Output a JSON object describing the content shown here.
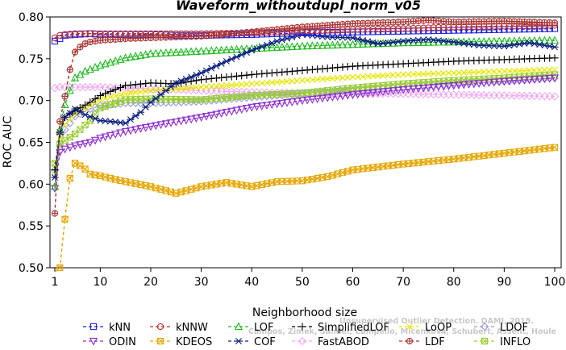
{
  "chart_data": {
    "type": "line",
    "title": "Waveform_withoutdupl_norm_v05",
    "xlabel": "Neighborhood size",
    "ylabel": "ROC AUC",
    "xlim": [
      1,
      100
    ],
    "ylim": [
      0.5,
      0.8
    ],
    "xticks": [
      1,
      10,
      20,
      30,
      40,
      50,
      60,
      70,
      80,
      90,
      100
    ],
    "yticks": [
      0.5,
      0.55,
      0.6,
      0.65,
      0.7,
      0.75,
      0.8
    ],
    "grid": false,
    "legend_position": "bottom",
    "watermark": [
      "Campos, Zimek, Sander, Campello, Micenkova, Schubert, Assent, Houle",
      "Unsupervised Outlier Detection. DAMI, 2015."
    ],
    "series": [
      {
        "name": "kNN",
        "color": "#1f1fe6",
        "marker": "square",
        "x": [
          1,
          2,
          3,
          5,
          8,
          10,
          15,
          20,
          25,
          30,
          40,
          50,
          60,
          70,
          80,
          90,
          100
        ],
        "y": [
          0.771,
          0.774,
          0.778,
          0.779,
          0.78,
          0.779,
          0.779,
          0.779,
          0.778,
          0.778,
          0.779,
          0.781,
          0.782,
          0.783,
          0.784,
          0.785,
          0.786
        ]
      },
      {
        "name": "kNNW",
        "color": "#c03030",
        "marker": "circle",
        "x": [
          1,
          2,
          3,
          5,
          8,
          10,
          15,
          20,
          30,
          40,
          50,
          60,
          70,
          80,
          90,
          100
        ],
        "y": [
          0.775,
          0.778,
          0.779,
          0.78,
          0.78,
          0.78,
          0.78,
          0.78,
          0.78,
          0.781,
          0.783,
          0.785,
          0.786,
          0.788,
          0.789,
          0.79
        ]
      },
      {
        "name": "LOF",
        "color": "#22bb22",
        "marker": "triangle-up",
        "x": [
          1,
          2,
          3,
          4,
          5,
          7,
          10,
          15,
          20,
          30,
          40,
          50,
          60,
          70,
          80,
          90,
          100
        ],
        "y": [
          0.597,
          0.665,
          0.695,
          0.712,
          0.727,
          0.735,
          0.742,
          0.751,
          0.756,
          0.759,
          0.762,
          0.765,
          0.767,
          0.769,
          0.77,
          0.771,
          0.772
        ]
      },
      {
        "name": "SimplifiedLOF",
        "color": "#000000",
        "marker": "plus",
        "x": [
          1,
          2,
          3,
          5,
          8,
          10,
          15,
          20,
          25,
          30,
          40,
          50,
          60,
          70,
          80,
          90,
          100
        ],
        "y": [
          0.617,
          0.66,
          0.68,
          0.688,
          0.698,
          0.706,
          0.718,
          0.721,
          0.72,
          0.725,
          0.731,
          0.736,
          0.741,
          0.744,
          0.747,
          0.749,
          0.751
        ]
      },
      {
        "name": "LoOP",
        "color": "#e6e600",
        "marker": "x",
        "x": [
          1,
          2,
          3,
          5,
          8,
          10,
          15,
          20,
          30,
          40,
          50,
          60,
          70,
          80,
          90,
          100
        ],
        "y": [
          0.615,
          0.655,
          0.672,
          0.684,
          0.694,
          0.701,
          0.708,
          0.712,
          0.716,
          0.72,
          0.724,
          0.728,
          0.731,
          0.733,
          0.735,
          0.737
        ]
      },
      {
        "name": "LDOF",
        "color": "#9a9ae0",
        "marker": "diamond",
        "x": [
          1,
          2,
          3,
          5,
          8,
          10,
          15,
          20,
          30,
          40,
          50,
          60,
          70,
          80,
          90,
          100
        ],
        "y": [
          0.617,
          0.645,
          0.665,
          0.681,
          0.69,
          0.694,
          0.697,
          0.697,
          0.699,
          0.704,
          0.708,
          0.712,
          0.716,
          0.72,
          0.723,
          0.727
        ]
      },
      {
        "name": "ODIN",
        "color": "#8e2fd0",
        "marker": "triangle-down",
        "x": [
          1,
          2,
          3,
          5,
          8,
          10,
          15,
          20,
          30,
          40,
          50,
          60,
          70,
          80,
          90,
          100
        ],
        "y": [
          0.595,
          0.638,
          0.642,
          0.646,
          0.65,
          0.655,
          0.663,
          0.669,
          0.68,
          0.692,
          0.7,
          0.707,
          0.713,
          0.718,
          0.723,
          0.727
        ]
      },
      {
        "name": "KDEOS",
        "color": "#e6a600",
        "marker": "square-x",
        "x": [
          1,
          2,
          3,
          4,
          5,
          6,
          7,
          8,
          10,
          12,
          15,
          20,
          25,
          30,
          35,
          40,
          45,
          50,
          55,
          60,
          70,
          80,
          90,
          100
        ],
        "y": [
          0.495,
          0.5,
          0.558,
          0.607,
          0.625,
          0.622,
          0.618,
          0.612,
          0.61,
          0.607,
          0.603,
          0.597,
          0.589,
          0.597,
          0.602,
          0.597,
          0.603,
          0.604,
          0.609,
          0.617,
          0.624,
          0.63,
          0.637,
          0.644
        ]
      },
      {
        "name": "COF",
        "color": "#0a1f80",
        "marker": "star",
        "x": [
          1,
          2,
          3,
          5,
          7,
          10,
          12,
          15,
          18,
          20,
          25,
          30,
          35,
          40,
          45,
          50,
          55,
          60,
          65,
          70,
          75,
          80,
          85,
          90,
          95,
          100
        ],
        "y": [
          0.608,
          0.662,
          0.68,
          0.69,
          0.683,
          0.676,
          0.675,
          0.673,
          0.686,
          0.698,
          0.721,
          0.733,
          0.747,
          0.76,
          0.771,
          0.779,
          0.776,
          0.775,
          0.768,
          0.771,
          0.773,
          0.77,
          0.766,
          0.765,
          0.769,
          0.764
        ]
      },
      {
        "name": "FastABOD",
        "color": "#f0a8f0",
        "marker": "diamond",
        "x": [
          1,
          2,
          3,
          5,
          8,
          10,
          15,
          20,
          30,
          40,
          50,
          60,
          70,
          80,
          90,
          100
        ],
        "y": [
          0.715,
          0.716,
          0.716,
          0.716,
          0.716,
          0.716,
          0.715,
          0.714,
          0.712,
          0.71,
          0.709,
          0.708,
          0.708,
          0.707,
          0.706,
          0.705
        ]
      },
      {
        "name": "LDF",
        "color": "#aa3333",
        "marker": "circle-plus",
        "x": [
          1,
          2,
          3,
          4,
          5,
          6,
          7,
          8,
          10,
          15,
          20,
          30,
          40,
          50,
          60,
          70,
          75,
          80,
          90,
          100
        ],
        "y": [
          0.565,
          0.675,
          0.705,
          0.737,
          0.758,
          0.764,
          0.768,
          0.77,
          0.772,
          0.774,
          0.775,
          0.777,
          0.782,
          0.788,
          0.792,
          0.794,
          0.796,
          0.794,
          0.795,
          0.793
        ]
      },
      {
        "name": "INFLO",
        "color": "#99cc33",
        "marker": "square-x",
        "x": [
          1,
          2,
          3,
          5,
          8,
          10,
          15,
          20,
          30,
          40,
          50,
          60,
          70,
          80,
          90,
          100
        ],
        "y": [
          0.625,
          0.648,
          0.652,
          0.66,
          0.676,
          0.691,
          0.701,
          0.702,
          0.701,
          0.706,
          0.709,
          0.715,
          0.72,
          0.724,
          0.727,
          0.731
        ]
      }
    ],
    "legend_order": [
      "kNN",
      "kNNW",
      "LOF",
      "SimplifiedLOF",
      "LoOP",
      "LDOF",
      "ODIN",
      "KDEOS",
      "COF",
      "FastABOD",
      "LDF",
      "INFLO"
    ]
  }
}
